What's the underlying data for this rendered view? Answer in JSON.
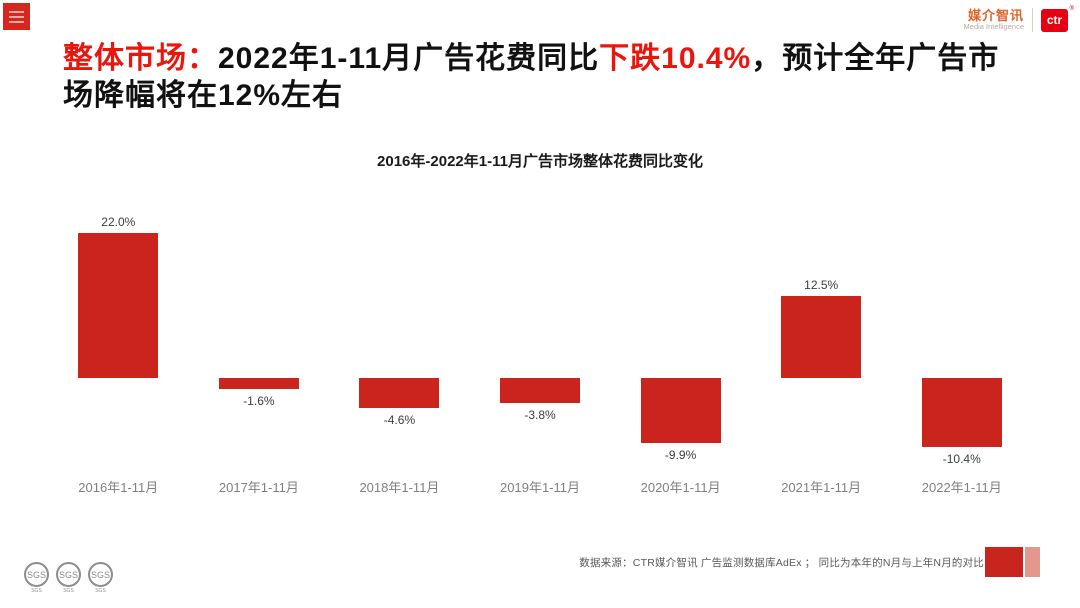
{
  "accent_color": "#e8160c",
  "header": {
    "menu_icon": "hamburger-icon",
    "logo": {
      "brand_cn": "媒介智讯",
      "brand_en": "Media Intelligence",
      "ctr": "ctr",
      "registered": "®"
    }
  },
  "title": {
    "prefix": "整体市场：",
    "part1": "2022年1-11月广告花费同比",
    "highlight": "下跌10.4%",
    "part2": "，预计全年广告市场降幅将在12%左右"
  },
  "chart_data": {
    "type": "bar",
    "title": "2016年-2022年1-11月广告市场整体花费同比变化",
    "categories": [
      "2016年1-11月",
      "2017年1-11月",
      "2018年1-11月",
      "2019年1-11月",
      "2020年1-11月",
      "2021年1-11月",
      "2022年1-11月"
    ],
    "values": [
      22.0,
      -1.6,
      -4.6,
      -3.8,
      -9.9,
      12.5,
      -10.4
    ],
    "labels": [
      "22.0%",
      "-1.6%",
      "-4.6%",
      "-3.8%",
      "-9.9%",
      "12.5%",
      "-10.4%"
    ],
    "bar_color": "#cb241d",
    "ylabel": "",
    "xlabel": "",
    "ylim": [
      -14,
      24
    ],
    "grid": false,
    "legend": false
  },
  "footer": {
    "source_note": "数据来源：CTR媒介智讯 广告监测数据库AdEx ；  同比为本年的N月与上年N月的对比",
    "badges": [
      "SGS",
      "SGS",
      "SGS"
    ]
  }
}
